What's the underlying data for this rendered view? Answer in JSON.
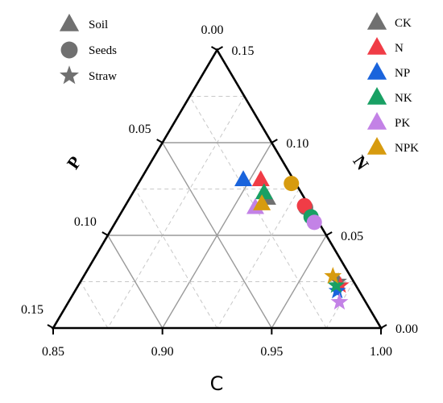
{
  "chart_data": {
    "type": "scatter",
    "subtype": "ternary",
    "axes": {
      "bottom": {
        "label": "C",
        "range": [
          0.85,
          1.0
        ],
        "ticks": [
          "0.85",
          "0.90",
          "0.95",
          "1.00"
        ],
        "tick_values": [
          0.85,
          0.9,
          0.95,
          1.0
        ]
      },
      "left": {
        "label": "P",
        "range": [
          0.0,
          0.15
        ],
        "ticks": [
          "0.00",
          "0.05",
          "0.10",
          "0.15"
        ],
        "tick_values": [
          0.0,
          0.05,
          0.1,
          0.15
        ]
      },
      "right": {
        "label": "N",
        "range": [
          0.0,
          0.15
        ],
        "ticks": [
          "0.00",
          "0.05",
          "0.10",
          "0.15"
        ],
        "tick_values": [
          0.0,
          0.05,
          0.1,
          0.15
        ]
      }
    },
    "grid": true,
    "legends": {
      "marker_types": {
        "placement": "top-left",
        "items": [
          {
            "label": "Soil",
            "marker": "triangle"
          },
          {
            "label": "Seeds",
            "marker": "circle"
          },
          {
            "label": "Straw",
            "marker": "star"
          }
        ]
      },
      "treatments": {
        "placement": "top-right",
        "items": [
          {
            "label": "CK",
            "color": "#707070"
          },
          {
            "label": "N",
            "color": "#f03c46"
          },
          {
            "label": "NP",
            "color": "#1a64dc"
          },
          {
            "label": "NK",
            "color": "#19a064"
          },
          {
            "label": "PK",
            "color": "#c382e6"
          },
          {
            "label": "NPK",
            "color": "#d79b0f"
          }
        ]
      }
    },
    "series": [
      {
        "treatment": "CK",
        "marker": "triangle",
        "C": 0.913,
        "N": 0.07,
        "P": 0.017
      },
      {
        "treatment": "CK",
        "marker": "circle",
        "C": 0.933,
        "N": 0.065,
        "P": 0.002
      },
      {
        "treatment": "CK",
        "marker": "star",
        "C": 0.968,
        "N": 0.025,
        "P": 0.007
      },
      {
        "treatment": "N",
        "marker": "triangle",
        "C": 0.905,
        "N": 0.08,
        "P": 0.015
      },
      {
        "treatment": "N",
        "marker": "circle",
        "C": 0.932,
        "N": 0.066,
        "P": 0.002
      },
      {
        "treatment": "N",
        "marker": "star",
        "C": 0.97,
        "N": 0.023,
        "P": 0.007
      },
      {
        "treatment": "NP",
        "marker": "triangle",
        "C": 0.897,
        "N": 0.08,
        "P": 0.023
      },
      {
        "treatment": "NP",
        "marker": "star",
        "C": 0.97,
        "N": 0.02,
        "P": 0.01
      },
      {
        "treatment": "NK",
        "marker": "triangle",
        "C": 0.91,
        "N": 0.073,
        "P": 0.017
      },
      {
        "treatment": "NK",
        "marker": "circle",
        "C": 0.938,
        "N": 0.06,
        "P": 0.002
      },
      {
        "treatment": "NK",
        "marker": "star",
        "C": 0.968,
        "N": 0.023,
        "P": 0.009
      },
      {
        "treatment": "PK",
        "marker": "triangle",
        "C": 0.91,
        "N": 0.065,
        "P": 0.025
      },
      {
        "treatment": "PK",
        "marker": "circle",
        "C": 0.941,
        "N": 0.057,
        "P": 0.002
      },
      {
        "treatment": "PK",
        "marker": "star",
        "C": 0.974,
        "N": 0.014,
        "P": 0.012
      },
      {
        "treatment": "NPK",
        "marker": "triangle",
        "C": 0.912,
        "N": 0.067,
        "P": 0.021
      },
      {
        "treatment": "NPK",
        "marker": "circle",
        "C": 0.92,
        "N": 0.078,
        "P": 0.002
      },
      {
        "treatment": "NPK",
        "marker": "star",
        "C": 0.964,
        "N": 0.028,
        "P": 0.008
      }
    ]
  }
}
